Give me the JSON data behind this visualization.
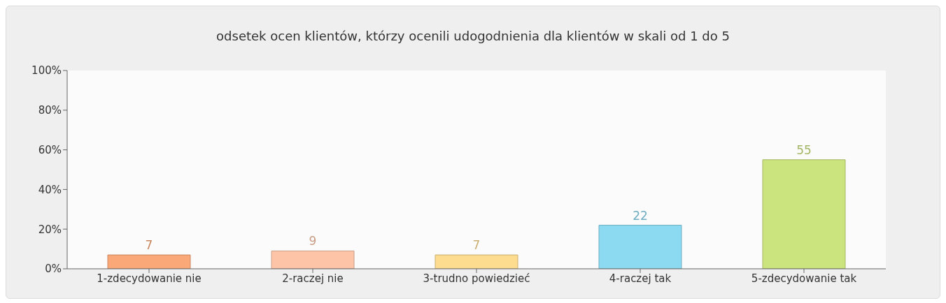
{
  "chart_data": {
    "type": "bar",
    "title": "odsetek ocen klientów, którzy ocenili udogodnienia dla klientów w skali od 1 do 5",
    "categories": [
      "1-zdecydowanie nie",
      "2-raczej nie",
      "3-trudno powiedzieć",
      "4-raczej tak",
      "5-zdecydowanie tak"
    ],
    "values": [
      7,
      9,
      7,
      22,
      55
    ],
    "colors": [
      "#fba878",
      "#fdc4a8",
      "#fddc90",
      "#8cdaf2",
      "#cce47e"
    ],
    "ylim": [
      0,
      100
    ],
    "yticks": [
      {
        "value": 0,
        "label": "0%"
      },
      {
        "value": 20,
        "label": "20%"
      },
      {
        "value": 40,
        "label": "40%"
      },
      {
        "value": 60,
        "label": "60%"
      },
      {
        "value": 80,
        "label": "80%"
      },
      {
        "value": 100,
        "label": "100%"
      }
    ],
    "data_labels": true,
    "grid": false
  }
}
